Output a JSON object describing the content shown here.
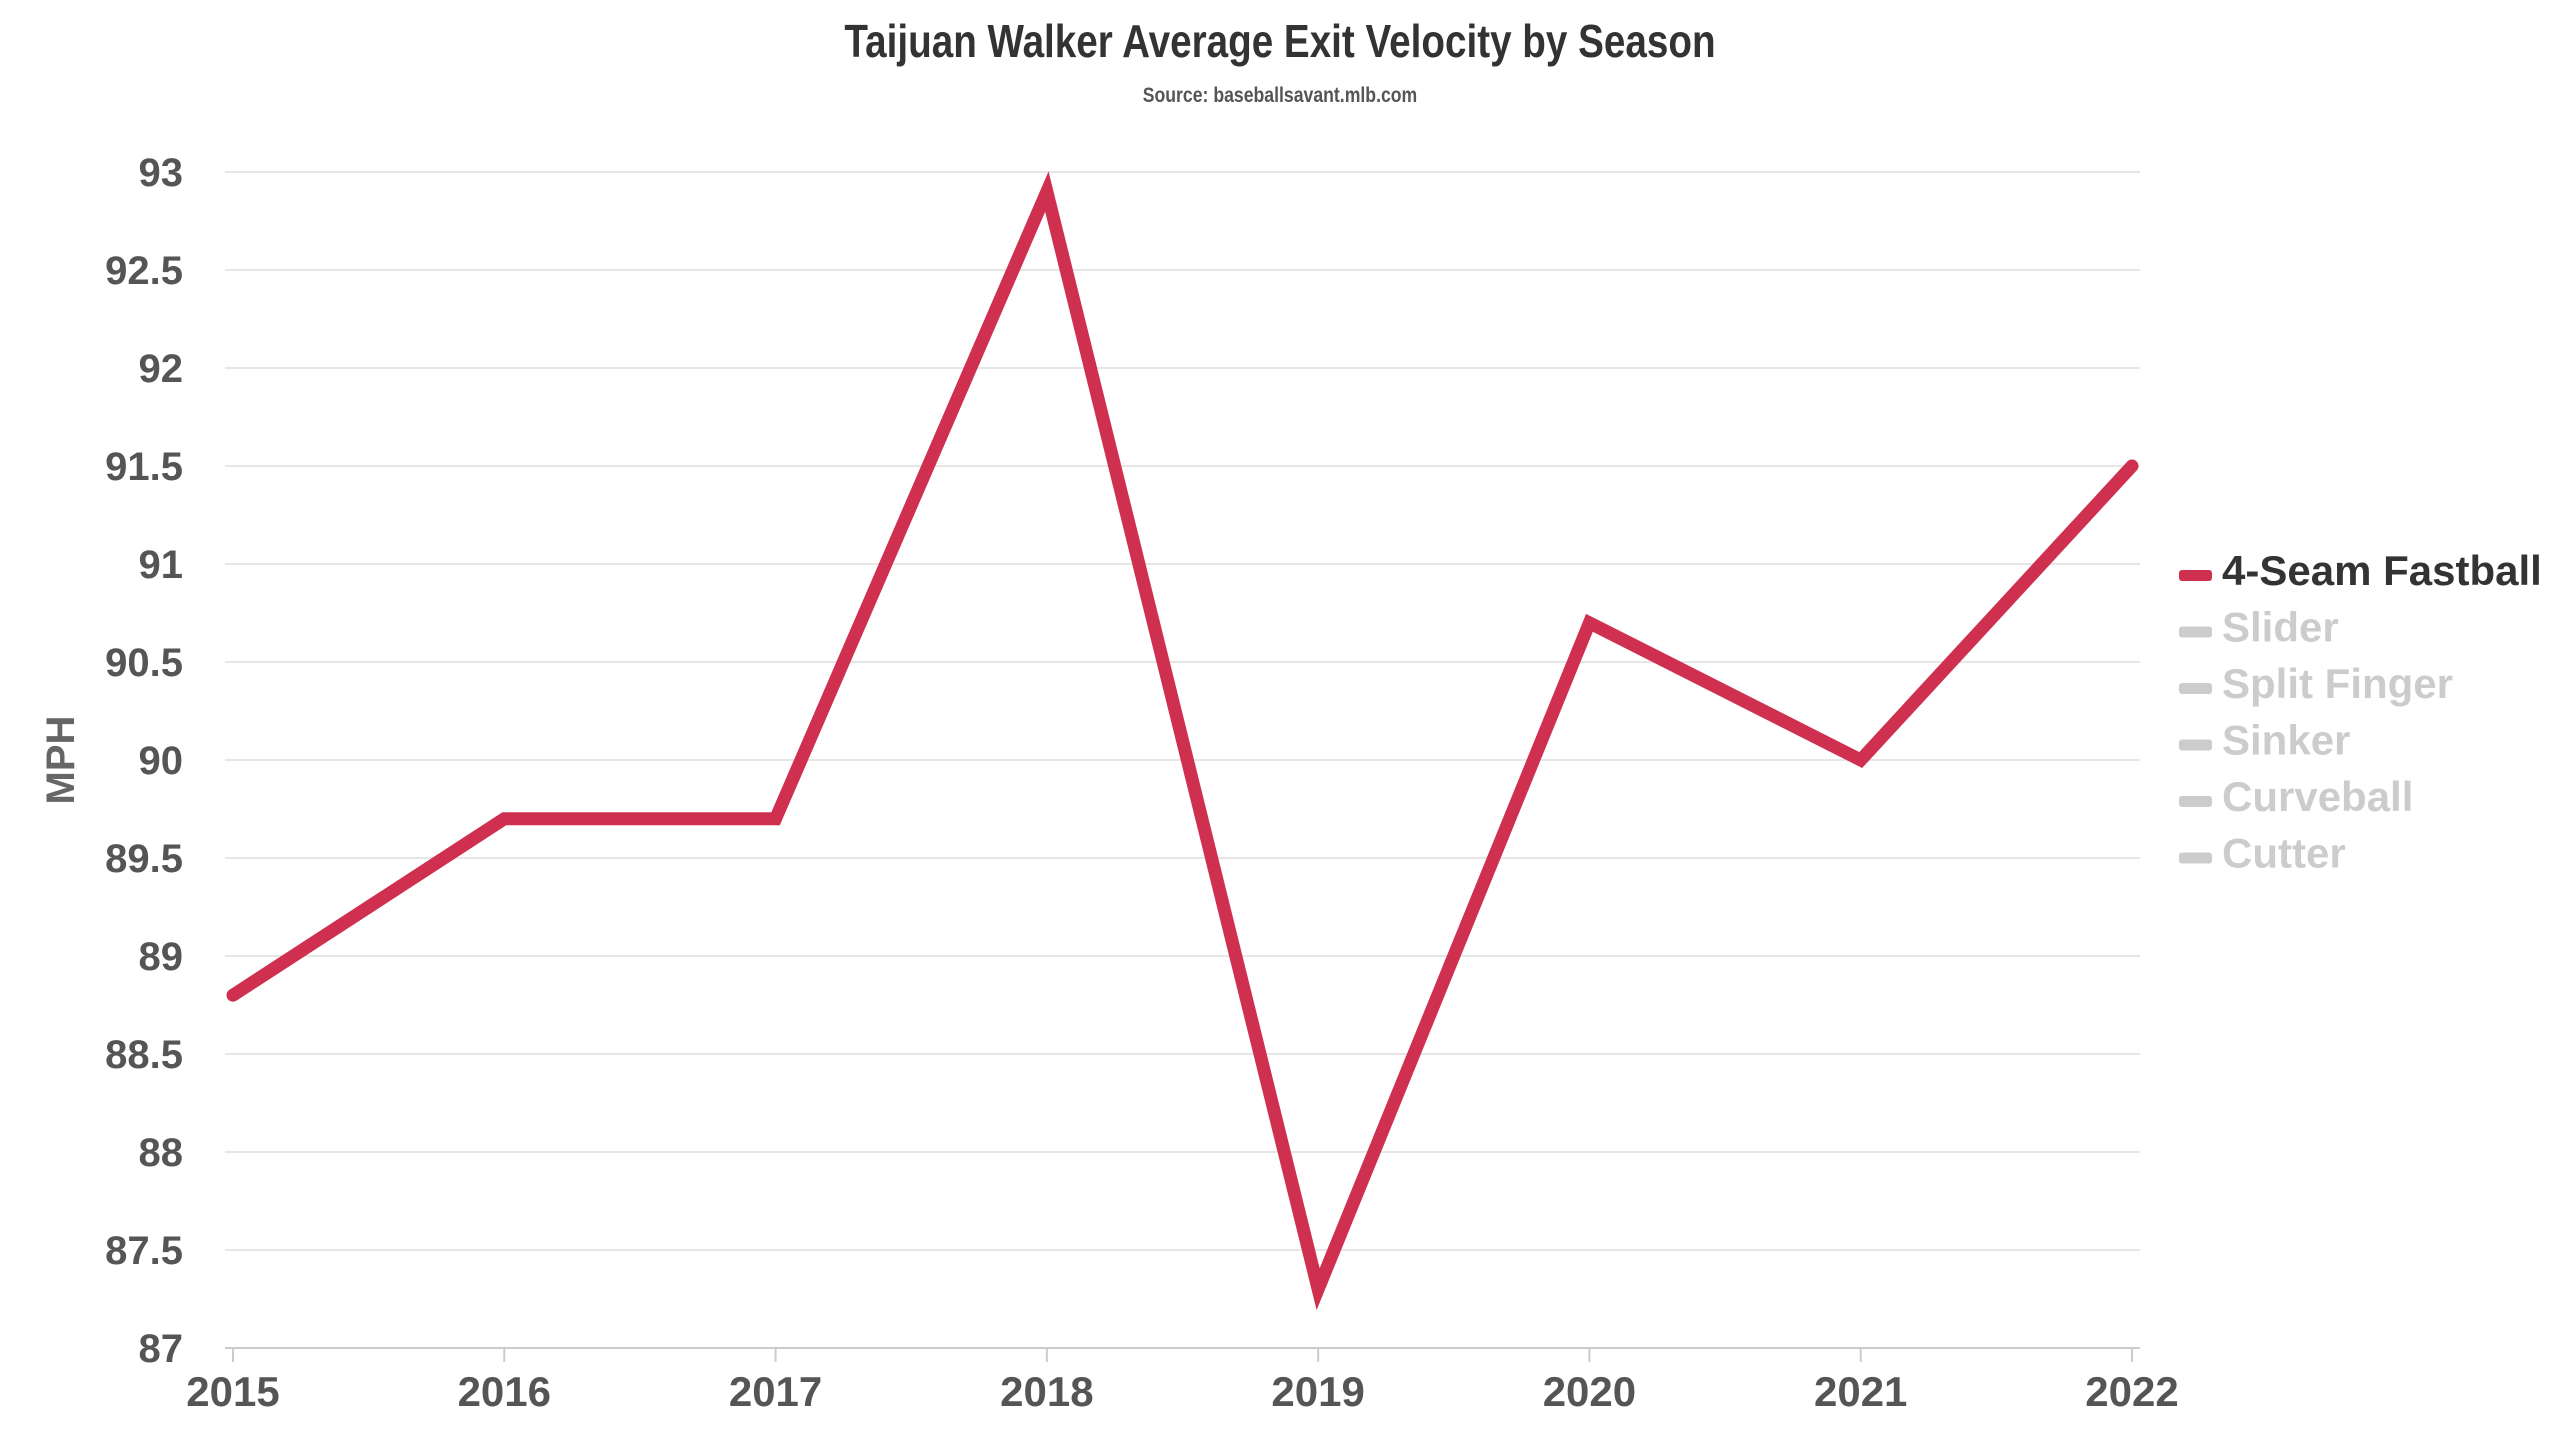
{
  "header": {
    "title": "Taijuan Walker Average Exit Velocity by Season",
    "subtitle": "Source: baseballsavant.mlb.com"
  },
  "chart_data": {
    "type": "line",
    "title": "Taijuan Walker Average Exit Velocity by Season",
    "subtitle": "Source: baseballsavant.mlb.com",
    "xlabel": "",
    "ylabel": "MPH",
    "x": [
      "2015",
      "2016",
      "2017",
      "2018",
      "2019",
      "2020",
      "2021",
      "2022"
    ],
    "ylim": [
      87,
      93
    ],
    "yticks": [
      "87",
      "87.5",
      "88",
      "88.5",
      "89",
      "89.5",
      "90",
      "90.5",
      "91",
      "91.5",
      "92",
      "92.5",
      "93"
    ],
    "grid": true,
    "legend_position": "right",
    "series": [
      {
        "name": "4-Seam Fastball",
        "values": [
          88.8,
          89.7,
          89.7,
          92.9,
          87.3,
          90.7,
          90.0,
          91.5
        ],
        "color": "#d0304f",
        "visible": true
      }
    ],
    "legend": [
      {
        "name": "4-Seam Fastball",
        "color": "#d0304f",
        "active": true
      },
      {
        "name": "Slider",
        "color": "#cccccc",
        "active": false
      },
      {
        "name": "Split Finger",
        "color": "#cccccc",
        "active": false
      },
      {
        "name": "Sinker",
        "color": "#cccccc",
        "active": false
      },
      {
        "name": "Curveball",
        "color": "#cccccc",
        "active": false
      },
      {
        "name": "Cutter",
        "color": "#cccccc",
        "active": false
      }
    ]
  }
}
